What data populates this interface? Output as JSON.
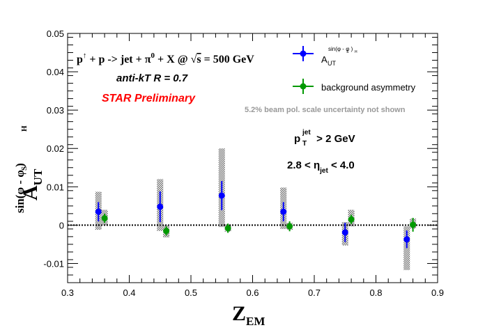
{
  "chart_data": {
    "type": "scatter",
    "xlabel": "Z",
    "xlabel_sub": "EM",
    "ylabel": "A",
    "ylabel_sub": "UT",
    "ylabel_sup": "sin(φ  - φ )",
    "ylabel_sup_s": "S",
    "ylabel_sup_h": "H",
    "xlim": [
      0.3,
      0.9
    ],
    "ylim": [
      -0.015,
      0.05
    ],
    "x_ticks": [
      0.3,
      0.4,
      0.5,
      0.6,
      0.7,
      0.8,
      0.9
    ],
    "x_tick_labels": [
      "0.3",
      "0.4",
      "0.5",
      "0.6",
      "0.7",
      "0.8",
      "0.9"
    ],
    "y_ticks": [
      -0.01,
      0,
      0.01,
      0.02,
      0.03,
      0.04,
      0.05
    ],
    "y_tick_labels": [
      "-0.01",
      "0",
      "0.01",
      "0.02",
      "0.03",
      "0.04",
      "0.05"
    ],
    "zero_line": true,
    "grid": false,
    "legend_position": "top-right",
    "series": [
      {
        "name_base": "A",
        "name_sub": "UT",
        "name_sup": "sin(φ  - φ )",
        "name_sup_s": "S",
        "name_sup_h": "H",
        "color": "#0000ff",
        "points": [
          {
            "x": 0.35,
            "y": 0.0035,
            "err": 0.0025,
            "sys_lo": -0.0012,
            "sys_hi": 0.0087
          },
          {
            "x": 0.45,
            "y": 0.0048,
            "err": 0.004,
            "sys_lo": -0.0015,
            "sys_hi": 0.012
          },
          {
            "x": 0.55,
            "y": 0.0077,
            "err": 0.0038,
            "sys_lo": -0.0005,
            "sys_hi": 0.02
          },
          {
            "x": 0.65,
            "y": 0.0035,
            "err": 0.0025,
            "sys_lo": -0.001,
            "sys_hi": 0.0098
          },
          {
            "x": 0.75,
            "y": -0.0019,
            "err": 0.0025,
            "sys_lo": -0.0053,
            "sys_hi": 0.0008
          },
          {
            "x": 0.85,
            "y": -0.0037,
            "err": 0.0023,
            "sys_lo": -0.0117,
            "sys_hi": -0.0003
          }
        ]
      },
      {
        "name": "background asymmetry",
        "color": "#009900",
        "points": [
          {
            "x": 0.36,
            "y": 0.0018,
            "err": 0.0012,
            "sys_lo": 0.0,
            "sys_hi": 0.004
          },
          {
            "x": 0.46,
            "y": -0.0015,
            "err": 0.0012,
            "sys_lo": -0.0032,
            "sys_hi": 0.0
          },
          {
            "x": 0.56,
            "y": -0.0008,
            "err": 0.0012,
            "sys_lo": -0.0017,
            "sys_hi": 0.0002
          },
          {
            "x": 0.66,
            "y": -0.0003,
            "err": 0.0013,
            "sys_lo": -0.0012,
            "sys_hi": 0.0006
          },
          {
            "x": 0.76,
            "y": 0.0015,
            "err": 0.0012,
            "sys_lo": -0.0003,
            "sys_hi": 0.004
          },
          {
            "x": 0.86,
            "y": 0.0001,
            "err": 0.0018,
            "sys_lo": -0.0009,
            "sys_hi": 0.0017
          }
        ]
      }
    ],
    "annotations": {
      "reaction": {
        "p": "p",
        "arrow": "↑",
        "mid": " + p -> jet +  π",
        "pi_sup": "0",
        "tail": " + X @  ",
        "sqrt": "√",
        "s": "s",
        "energy": " = 500 GeV"
      },
      "algo": "anti-kT R = 0.7",
      "preliminary": "STAR Preliminary",
      "uncertainty": "5.2% beam pol. scale uncertainty not shown",
      "pt_cut": {
        "p": "p",
        "sub": "T",
        "sup": "jet",
        "tail": " > 2 GeV"
      },
      "eta_cut": {
        "head": "2.8 <  η",
        "sub": "jet",
        "tail": " < 4.0"
      }
    },
    "colors": {
      "preliminary": "#ff0000",
      "uncertainty": "#999999",
      "sys_band": "#7a7a7a"
    }
  }
}
